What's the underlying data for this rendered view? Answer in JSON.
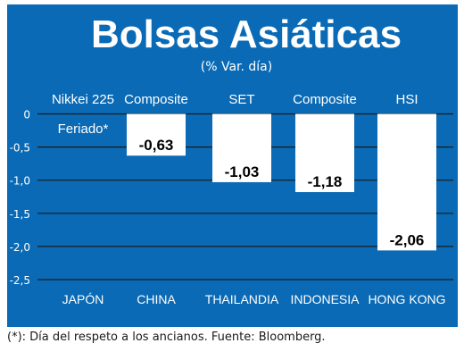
{
  "chart_data": {
    "type": "bar",
    "title": "Bolsas Asiáticas",
    "subtitle": "(% Var. día)",
    "categories": [
      "JAPÓN",
      "CHINA",
      "THAILANDIA",
      "INDONESIA",
      "HONG KONG"
    ],
    "index_names": [
      "Nikkei 225",
      "Composite",
      "SET",
      "Composite",
      "HSI"
    ],
    "values": [
      null,
      -0.63,
      -1.03,
      -1.18,
      -2.06
    ],
    "value_labels": [
      "",
      "-0,63",
      "-1,03",
      "-1,18",
      "-2,06"
    ],
    "annotations": [
      {
        "category": "JAPÓN",
        "text": "Feriado*"
      }
    ],
    "yticks": [
      "0",
      "-0,5",
      "-1,0",
      "-1,5",
      "-2,0",
      "-2,5"
    ],
    "ytick_values": [
      0,
      -0.5,
      -1.0,
      -1.5,
      -2.0,
      -2.5
    ],
    "ylim": [
      -2.5,
      0
    ],
    "grid": true,
    "colors": {
      "background": "#0a6ab5",
      "bar": "#ffffff",
      "text": "#ffffff",
      "grid": "#1a1a1a",
      "value_text": "#000000"
    }
  },
  "footnote": "(*): Día del respeto a los ancianos. Fuente: Bloomberg."
}
